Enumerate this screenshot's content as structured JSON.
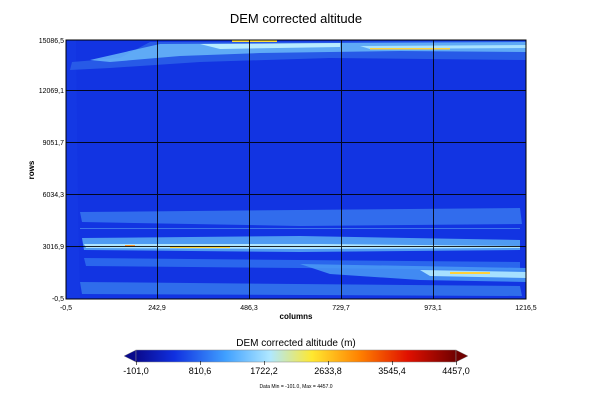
{
  "chart_data": {
    "type": "heatmap",
    "title": "DEM corrected altitude",
    "xlabel": "columns",
    "ylabel": "rows",
    "x_ticks": [
      "-0,5",
      "242,9",
      "486,3",
      "729,7",
      "973,1",
      "1216,5"
    ],
    "y_ticks": [
      "-0,5",
      "3016,9",
      "6034,3",
      "9051,7",
      "12069,1",
      "15086,5"
    ],
    "xlim": [
      -0.5,
      1216.5
    ],
    "ylim": [
      -0.5,
      15086.5
    ],
    "grid": true,
    "colorbar": {
      "title": "DEM corrected altitude (m)",
      "ticks": [
        "-101,0",
        "810,6",
        "1722,2",
        "2633,8",
        "3545,4",
        "4457,0"
      ],
      "range": [
        -101.0,
        4457.0
      ],
      "colors": [
        "#0a0a8c",
        "#1030e0",
        "#40a0ff",
        "#b0e8ff",
        "#ffe830",
        "#ff8000",
        "#e01000",
        "#700000"
      ]
    },
    "stats_text": "Data Min = -101.0,  Max = 4457.0"
  }
}
